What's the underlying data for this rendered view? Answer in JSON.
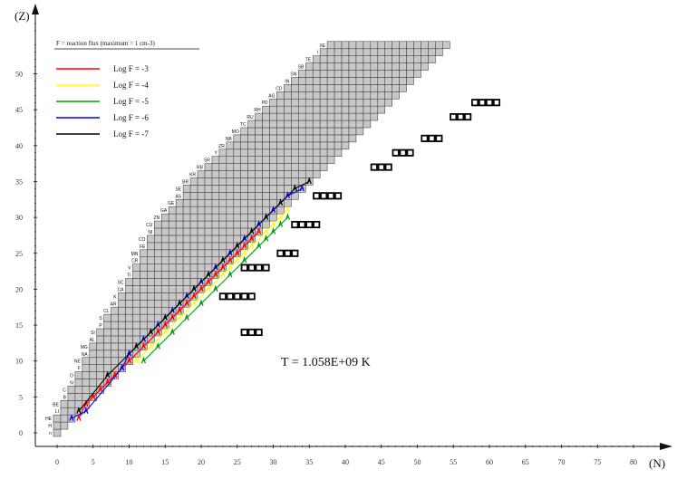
{
  "chart_data": {
    "type": "scatter",
    "title": "",
    "xlabel": "(N)",
    "ylabel": "(Z)",
    "xlim": [
      -2,
      85
    ],
    "ylim": [
      -2,
      55
    ],
    "x_ticks": [
      0,
      5,
      10,
      15,
      20,
      25,
      30,
      35,
      40,
      45,
      50,
      55,
      60,
      65,
      70,
      75,
      80
    ],
    "y_ticks": [
      0,
      5,
      10,
      15,
      20,
      25,
      30,
      35,
      40,
      45,
      50
    ],
    "annotation": "T = 1.058E+09 K",
    "legend_title": "F = reaction flux (maximum = 1 cm-3)",
    "legend": [
      {
        "label": "Log F = -3",
        "color": "#ff0000"
      },
      {
        "label": "Log F = -4",
        "color": "#ffff00"
      },
      {
        "label": "Log F = -5",
        "color": "#00a000"
      },
      {
        "label": "Log F = -6",
        "color": "#0000ff"
      },
      {
        "label": "Log F = -7",
        "color": "#000000"
      }
    ],
    "element_labels": [
      {
        "z": 0,
        "sym": "n"
      },
      {
        "z": 1,
        "sym": "H"
      },
      {
        "z": 2,
        "sym": "HE"
      },
      {
        "z": 3,
        "sym": "LI"
      },
      {
        "z": 4,
        "sym": "BE"
      },
      {
        "z": 5,
        "sym": "B"
      },
      {
        "z": 6,
        "sym": "C"
      },
      {
        "z": 7,
        "sym": "N"
      },
      {
        "z": 8,
        "sym": "O"
      },
      {
        "z": 9,
        "sym": "F"
      },
      {
        "z": 10,
        "sym": "NE"
      },
      {
        "z": 11,
        "sym": "NA"
      },
      {
        "z": 12,
        "sym": "MG"
      },
      {
        "z": 13,
        "sym": "AL"
      },
      {
        "z": 14,
        "sym": "SI"
      },
      {
        "z": 15,
        "sym": "P"
      },
      {
        "z": 16,
        "sym": "S"
      },
      {
        "z": 17,
        "sym": "CL"
      },
      {
        "z": 18,
        "sym": "AR"
      },
      {
        "z": 19,
        "sym": "K"
      },
      {
        "z": 20,
        "sym": "CA"
      },
      {
        "z": 21,
        "sym": "SC"
      },
      {
        "z": 22,
        "sym": "TI"
      },
      {
        "z": 23,
        "sym": "V"
      },
      {
        "z": 24,
        "sym": "CR"
      },
      {
        "z": 25,
        "sym": "MN"
      },
      {
        "z": 26,
        "sym": "FE"
      },
      {
        "z": 27,
        "sym": "CO"
      },
      {
        "z": 28,
        "sym": "NI"
      },
      {
        "z": 29,
        "sym": "CU"
      },
      {
        "z": 30,
        "sym": "ZN"
      },
      {
        "z": 31,
        "sym": "GA"
      },
      {
        "z": 32,
        "sym": "GE"
      },
      {
        "z": 33,
        "sym": "AS"
      },
      {
        "z": 34,
        "sym": "SE"
      },
      {
        "z": 35,
        "sym": "BR"
      },
      {
        "z": 36,
        "sym": "KR"
      },
      {
        "z": 37,
        "sym": "RB"
      },
      {
        "z": 38,
        "sym": "SR"
      },
      {
        "z": 39,
        "sym": "Y"
      },
      {
        "z": 40,
        "sym": "ZR"
      },
      {
        "z": 41,
        "sym": "NB"
      },
      {
        "z": 42,
        "sym": "MO"
      },
      {
        "z": 43,
        "sym": "TC"
      },
      {
        "z": 44,
        "sym": "RU"
      },
      {
        "z": 45,
        "sym": "RH"
      },
      {
        "z": 46,
        "sym": "PD"
      },
      {
        "z": 47,
        "sym": "AG"
      },
      {
        "z": 48,
        "sym": "CD"
      },
      {
        "z": 49,
        "sym": "IN"
      },
      {
        "z": 50,
        "sym": "SN"
      },
      {
        "z": 51,
        "sym": "SB"
      },
      {
        "z": 52,
        "sym": "TE"
      },
      {
        "z": 53,
        "sym": "I"
      },
      {
        "z": 54,
        "sym": "XE"
      }
    ],
    "grey_network_ranges": [
      [
        0,
        0
      ],
      [
        0,
        1
      ],
      [
        0,
        2
      ],
      [
        1,
        3
      ],
      [
        1,
        4
      ],
      [
        2,
        5
      ],
      [
        2,
        6
      ],
      [
        3,
        7
      ],
      [
        3,
        8
      ],
      [
        4,
        9
      ],
      [
        4,
        10
      ],
      [
        5,
        11
      ],
      [
        5,
        12
      ],
      [
        6,
        13
      ],
      [
        6,
        14
      ],
      [
        7,
        15
      ],
      [
        7,
        16
      ],
      [
        8,
        17
      ],
      [
        9,
        18
      ],
      [
        9,
        19
      ],
      [
        10,
        20
      ],
      [
        10,
        21
      ],
      [
        11,
        22
      ],
      [
        11,
        23
      ],
      [
        12,
        24
      ],
      [
        12,
        25
      ],
      [
        13,
        26
      ],
      [
        13,
        27
      ],
      [
        14,
        28
      ],
      [
        14,
        29
      ],
      [
        15,
        30
      ],
      [
        16,
        31
      ],
      [
        17,
        32
      ],
      [
        18,
        33
      ],
      [
        18,
        34
      ],
      [
        19,
        35
      ],
      [
        20,
        36
      ],
      [
        21,
        37
      ],
      [
        22,
        38
      ],
      [
        23,
        39
      ],
      [
        24,
        40
      ],
      [
        25,
        41
      ],
      [
        26,
        42
      ],
      [
        27,
        43
      ],
      [
        28,
        44
      ],
      [
        29,
        45
      ],
      [
        30,
        46
      ],
      [
        31,
        47
      ],
      [
        32,
        48
      ],
      [
        33,
        49
      ],
      [
        34,
        50
      ],
      [
        35,
        51
      ],
      [
        36,
        52
      ],
      [
        37,
        53
      ],
      [
        38,
        54
      ]
    ],
    "bold_cells": [
      [
        26,
        14
      ],
      [
        27,
        14
      ],
      [
        28,
        14
      ],
      [
        23,
        19
      ],
      [
        24,
        19
      ],
      [
        25,
        19
      ],
      [
        26,
        19
      ],
      [
        27,
        19
      ],
      [
        26,
        23
      ],
      [
        27,
        23
      ],
      [
        28,
        23
      ],
      [
        29,
        23
      ],
      [
        31,
        25
      ],
      [
        32,
        25
      ],
      [
        33,
        25
      ],
      [
        33,
        29
      ],
      [
        34,
        29
      ],
      [
        35,
        29
      ],
      [
        36,
        29
      ],
      [
        36,
        33
      ],
      [
        37,
        33
      ],
      [
        38,
        33
      ],
      [
        39,
        33
      ],
      [
        44,
        37
      ],
      [
        45,
        37
      ],
      [
        46,
        37
      ],
      [
        47,
        39
      ],
      [
        48,
        39
      ],
      [
        49,
        39
      ],
      [
        51,
        41
      ],
      [
        52,
        41
      ],
      [
        53,
        41
      ],
      [
        55,
        44
      ],
      [
        56,
        44
      ],
      [
        57,
        44
      ],
      [
        58,
        46
      ],
      [
        59,
        46
      ],
      [
        60,
        46
      ],
      [
        61,
        46
      ]
    ],
    "flux_series": [
      {
        "log_f": -3,
        "color": "#ff0000",
        "points": [
          [
            3,
            2
          ],
          [
            4,
            4
          ],
          [
            5,
            5
          ],
          [
            6,
            6
          ],
          [
            7,
            7
          ],
          [
            8,
            8
          ],
          [
            9,
            9
          ],
          [
            10,
            10
          ],
          [
            12,
            12
          ],
          [
            14,
            14
          ],
          [
            15,
            15
          ],
          [
            16,
            16
          ],
          [
            17,
            17
          ],
          [
            18,
            18
          ],
          [
            19,
            19
          ],
          [
            20,
            20
          ],
          [
            21,
            21
          ],
          [
            22,
            22
          ],
          [
            23,
            23
          ],
          [
            24,
            24
          ],
          [
            25,
            25
          ],
          [
            26,
            26
          ],
          [
            27,
            27
          ],
          [
            28,
            28
          ]
        ]
      },
      {
        "log_f": -4,
        "color": "#ffff00",
        "points": [
          [
            11,
            10
          ],
          [
            13,
            12
          ],
          [
            15,
            14
          ],
          [
            17,
            16
          ],
          [
            19,
            18
          ],
          [
            21,
            20
          ],
          [
            23,
            22
          ],
          [
            24,
            23
          ],
          [
            25,
            24
          ],
          [
            26,
            25
          ],
          [
            27,
            26
          ],
          [
            29,
            28
          ],
          [
            30,
            29
          ],
          [
            31,
            30
          ],
          [
            32,
            31
          ]
        ]
      },
      {
        "log_f": -5,
        "color": "#00a000",
        "points": [
          [
            12,
            10
          ],
          [
            14,
            12
          ],
          [
            16,
            14
          ],
          [
            18,
            16
          ],
          [
            20,
            18
          ],
          [
            22,
            20
          ],
          [
            24,
            22
          ],
          [
            26,
            24
          ],
          [
            28,
            26
          ],
          [
            29,
            27
          ],
          [
            30,
            28
          ],
          [
            31,
            29
          ],
          [
            32,
            30
          ]
        ]
      },
      {
        "log_f": -6,
        "color": "#0000ff",
        "points": [
          [
            2,
            2
          ],
          [
            4,
            3
          ],
          [
            9,
            9
          ],
          [
            10,
            11
          ],
          [
            12,
            13
          ],
          [
            14,
            15
          ],
          [
            16,
            17
          ],
          [
            18,
            19
          ],
          [
            20,
            21
          ],
          [
            22,
            23
          ],
          [
            24,
            25
          ],
          [
            26,
            27
          ],
          [
            28,
            29
          ],
          [
            30,
            31
          ],
          [
            32,
            33
          ],
          [
            34,
            34
          ]
        ]
      },
      {
        "log_f": -7,
        "color": "#000000",
        "points": [
          [
            3,
            3
          ],
          [
            7,
            8
          ],
          [
            11,
            12
          ],
          [
            13,
            14
          ],
          [
            15,
            16
          ],
          [
            17,
            18
          ],
          [
            19,
            20
          ],
          [
            21,
            22
          ],
          [
            23,
            24
          ],
          [
            25,
            26
          ],
          [
            27,
            28
          ],
          [
            29,
            30
          ],
          [
            31,
            32
          ],
          [
            33,
            34
          ],
          [
            35,
            35
          ]
        ]
      }
    ]
  }
}
